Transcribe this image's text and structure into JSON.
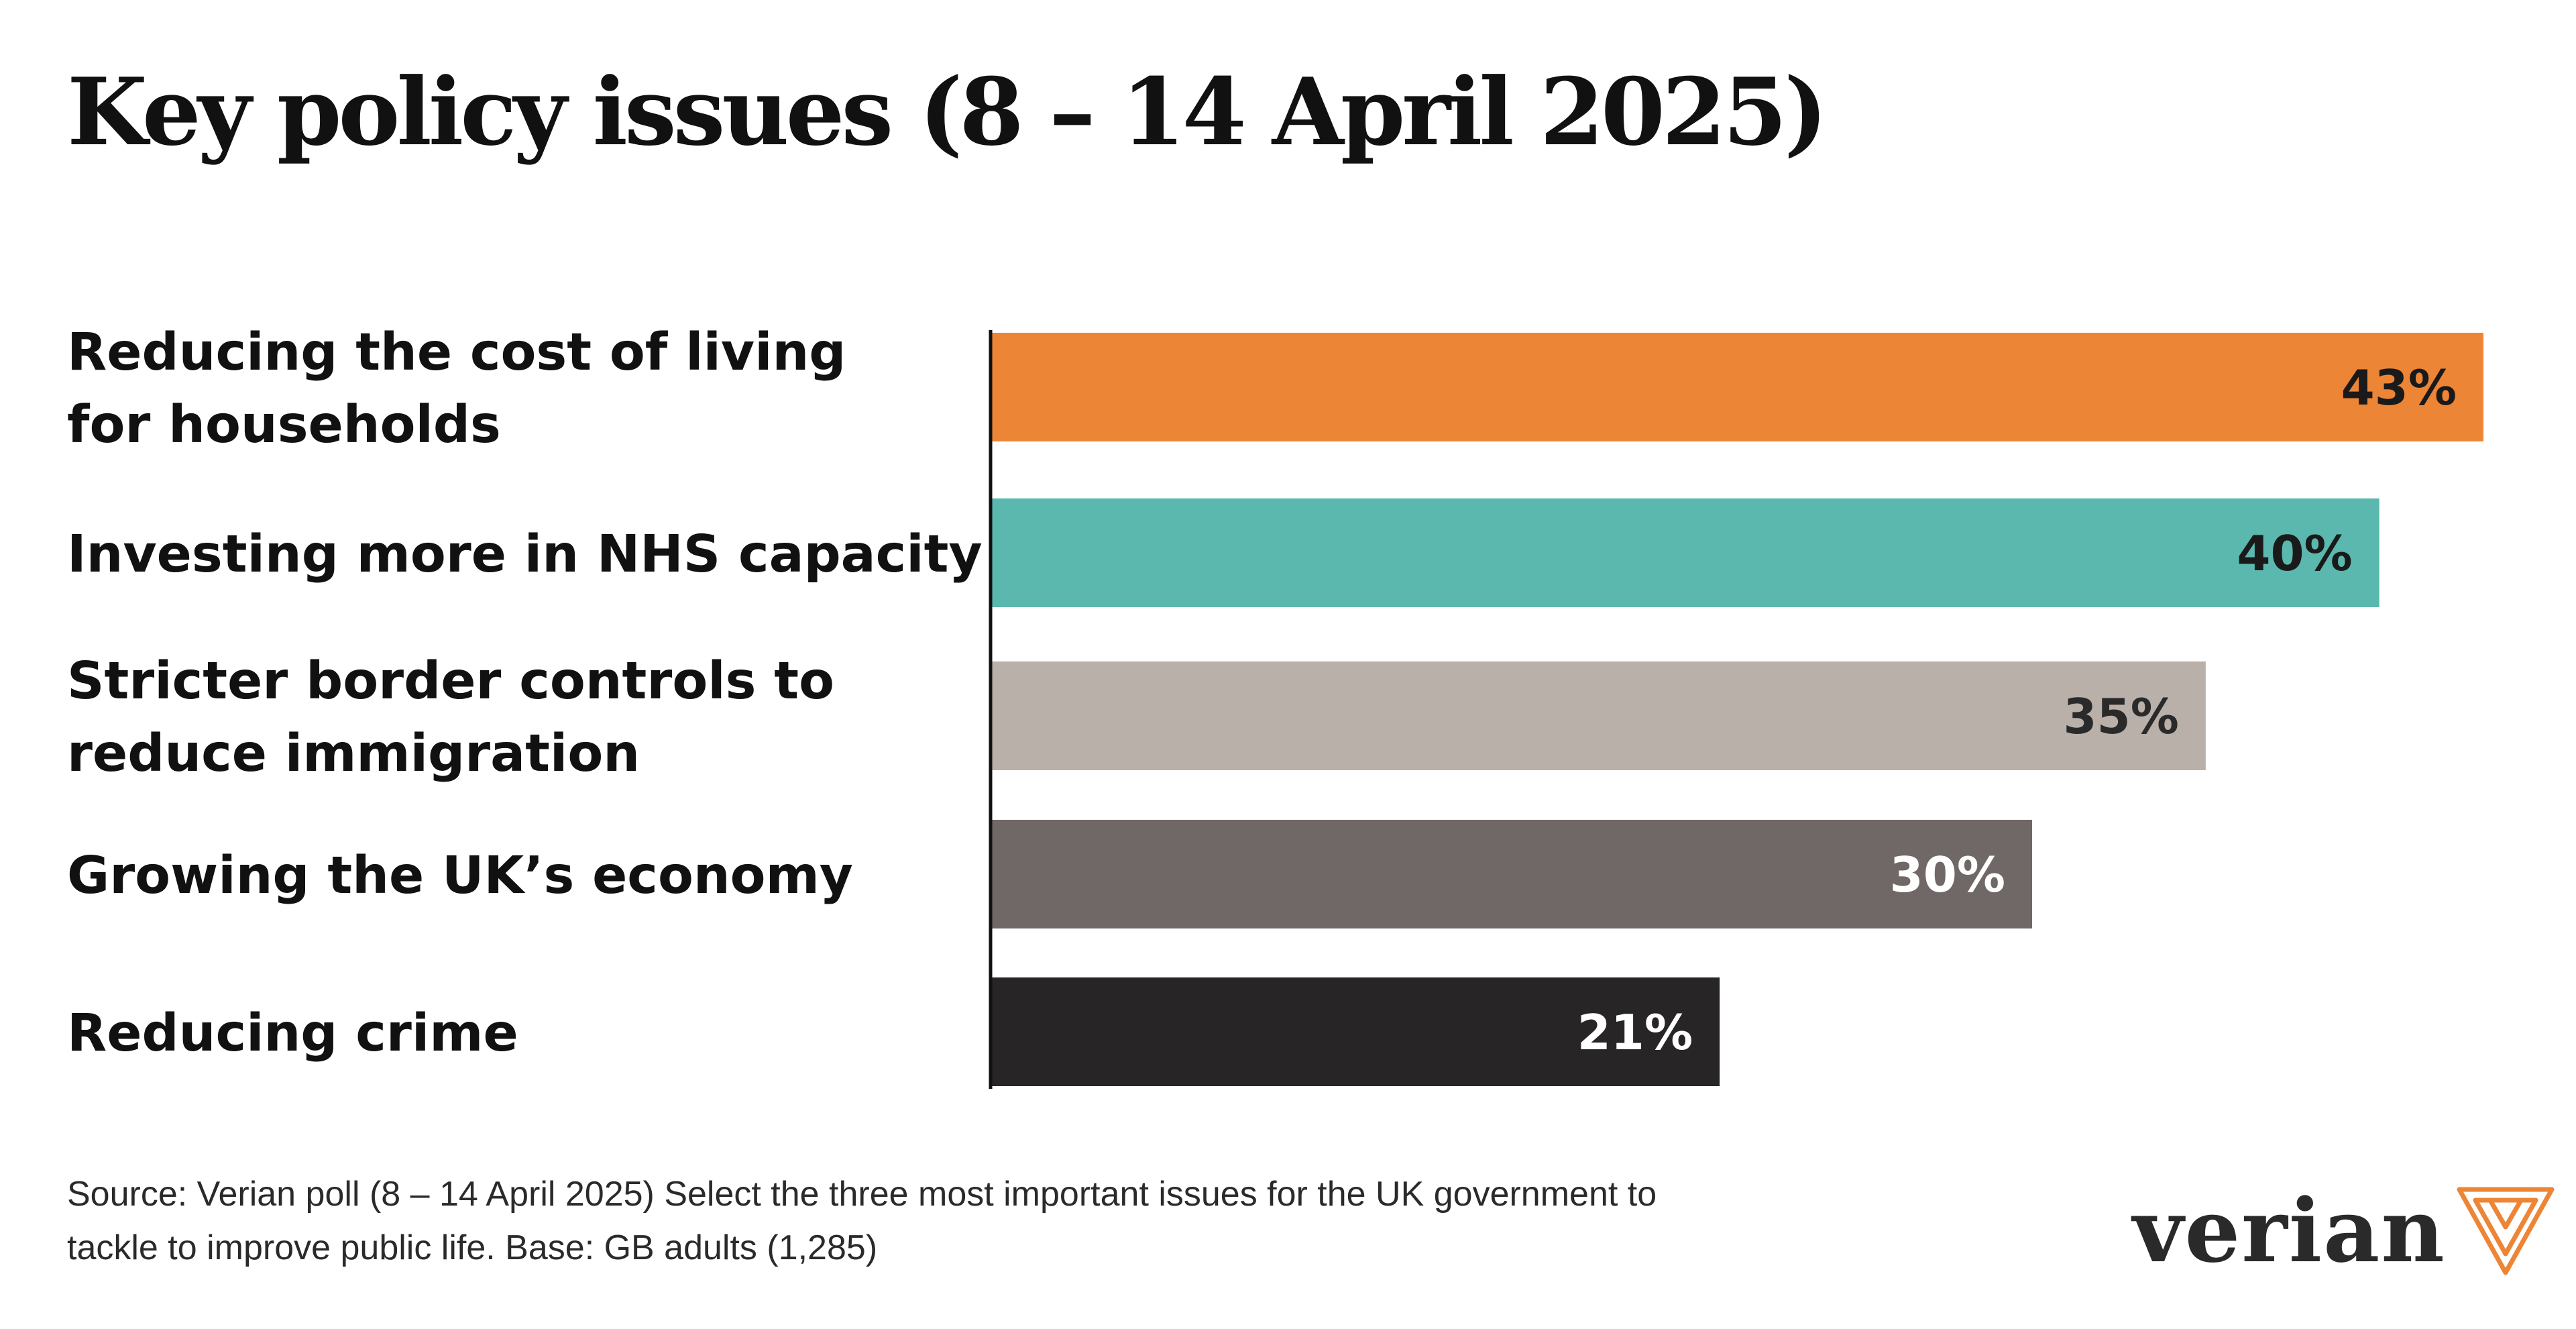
{
  "chart_data": {
    "type": "bar",
    "orientation": "horizontal",
    "title": "Key policy issues (8 – 14 April 2025)",
    "categories": [
      "Reducing the cost of living for households",
      "Investing more in NHS capacity",
      "Stricter border controls to reduce immigration",
      "Growing the UK’s economy",
      "Reducing crime"
    ],
    "category_lines": [
      [
        "Reducing the cost of living",
        "for households"
      ],
      [
        "Investing more in NHS capacity"
      ],
      [
        "Stricter border controls to",
        "reduce immigration"
      ],
      [
        "Growing the UK’s economy"
      ],
      [
        "Reducing crime"
      ]
    ],
    "values": [
      43,
      40,
      35,
      30,
      21
    ],
    "value_labels": [
      "43%",
      "40%",
      "35%",
      "30%",
      "21%"
    ],
    "unit": "%",
    "bar_colors": [
      "#ED8536",
      "#5BB8AE",
      "#B9B0AA",
      "#706866",
      "#272525"
    ],
    "label_colors": [
      "#1a1a1a",
      "#1a1a1a",
      "#2a2a2a",
      "#ffffff",
      "#ffffff"
    ],
    "xlim": [
      0,
      43
    ],
    "xlabel": "",
    "ylabel": "",
    "grid": false,
    "legend": "none"
  },
  "source": "Source: Verian poll (8 – 14 April 2025) Select the three most important issues for the UK government to tackle to improve public life. Base: GB adults (1,285)",
  "logo": {
    "text": "verian",
    "mark_color": "#ED8536"
  }
}
